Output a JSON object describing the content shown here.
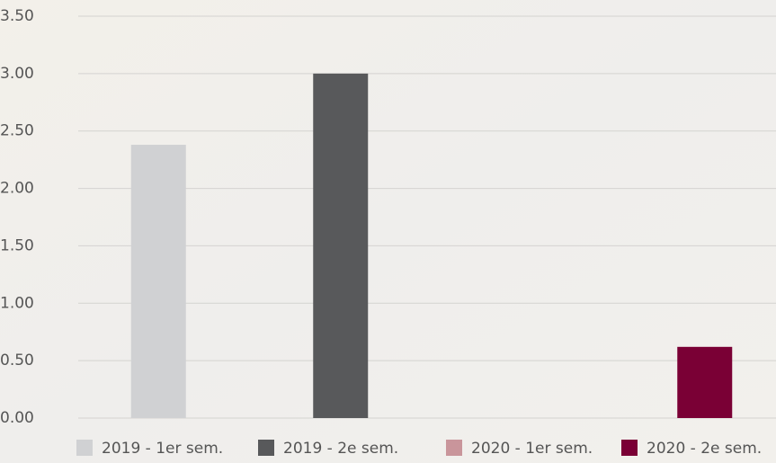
{
  "chart_data": {
    "type": "bar",
    "series": [
      {
        "name": "2019 - 1er sem.",
        "color": "#d0d1d3",
        "values": [
          2.38
        ]
      },
      {
        "name": "2019 - 2e sem.",
        "color": "#58595b",
        "values": [
          3.0
        ]
      },
      {
        "name": "2020 - 1er sem.",
        "color": "#c9959b",
        "values": [
          null
        ]
      },
      {
        "name": "2020 - 2e sem.",
        "color": "#7a0035",
        "values": [
          0.62
        ]
      }
    ],
    "ylim": [
      0,
      3.5
    ],
    "yticks": [
      {
        "value": 0,
        "label": "0.00"
      },
      {
        "value": 0.5,
        "label": "0.50"
      },
      {
        "value": 1,
        "label": "1.00"
      },
      {
        "value": 1.5,
        "label": "1.50"
      },
      {
        "value": 2,
        "label": "2.00"
      },
      {
        "value": 2.5,
        "label": "2.50"
      },
      {
        "value": 3,
        "label": "3.00"
      },
      {
        "value": 3.5,
        "label": "3.50"
      }
    ],
    "grid": true
  }
}
